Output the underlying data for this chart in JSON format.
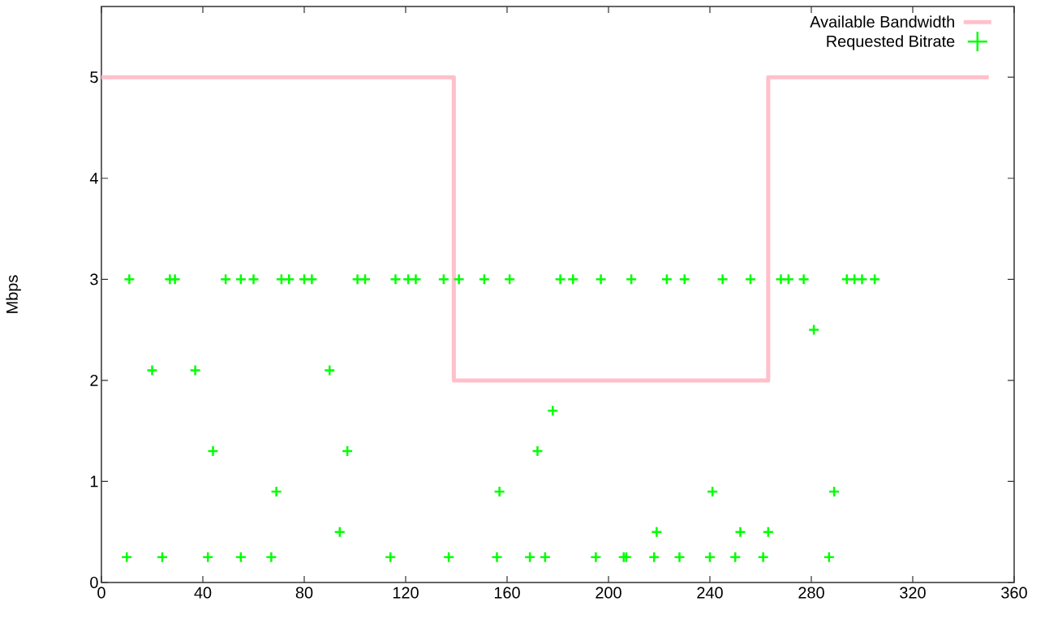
{
  "chart_data": {
    "type": "scatter",
    "ylabel": "Mbps",
    "xlim": [
      0,
      360
    ],
    "ylim": [
      0,
      5.7
    ],
    "xticks": [
      0,
      40,
      80,
      120,
      160,
      200,
      240,
      280,
      320,
      360
    ],
    "yticks": [
      0,
      1,
      2,
      3,
      4,
      5
    ],
    "legend": "top right",
    "grid": false,
    "series": [
      {
        "name": "Available Bandwidth",
        "type": "step",
        "color": "#ffc0cb",
        "marker": "none",
        "x": [
          0,
          139,
          263,
          350
        ],
        "values": [
          5,
          2,
          5,
          5
        ]
      },
      {
        "name": "Requested Bitrate",
        "color": "#00ff00",
        "marker": "cross",
        "x": [
          11,
          27,
          29,
          49,
          55,
          60,
          71,
          74,
          80,
          83,
          101,
          104,
          116,
          121,
          124,
          135,
          141,
          151,
          161,
          181,
          186,
          197,
          209,
          223,
          230,
          245,
          256,
          268,
          271,
          277,
          294,
          297,
          300,
          305,
          20,
          37,
          90,
          44,
          97,
          172,
          69,
          157,
          241,
          289,
          94,
          219,
          252,
          263,
          178,
          281,
          10,
          24,
          42,
          55,
          67,
          114,
          137,
          156,
          169,
          175,
          195,
          206,
          207,
          218,
          228,
          240,
          250,
          261,
          287
        ],
        "values": [
          3,
          3,
          3,
          3,
          3,
          3,
          3,
          3,
          3,
          3,
          3,
          3,
          3,
          3,
          3,
          3,
          3,
          3,
          3,
          3,
          3,
          3,
          3,
          3,
          3,
          3,
          3,
          3,
          3,
          3,
          3,
          3,
          3,
          3,
          2.1,
          2.1,
          2.1,
          1.3,
          1.3,
          1.3,
          0.9,
          0.9,
          0.9,
          0.9,
          0.5,
          0.5,
          0.5,
          0.5,
          1.7,
          2.5,
          0.25,
          0.25,
          0.25,
          0.25,
          0.25,
          0.25,
          0.25,
          0.25,
          0.25,
          0.25,
          0.25,
          0.25,
          0.25,
          0.25,
          0.25,
          0.25,
          0.25,
          0.25,
          0.25
        ]
      }
    ]
  }
}
